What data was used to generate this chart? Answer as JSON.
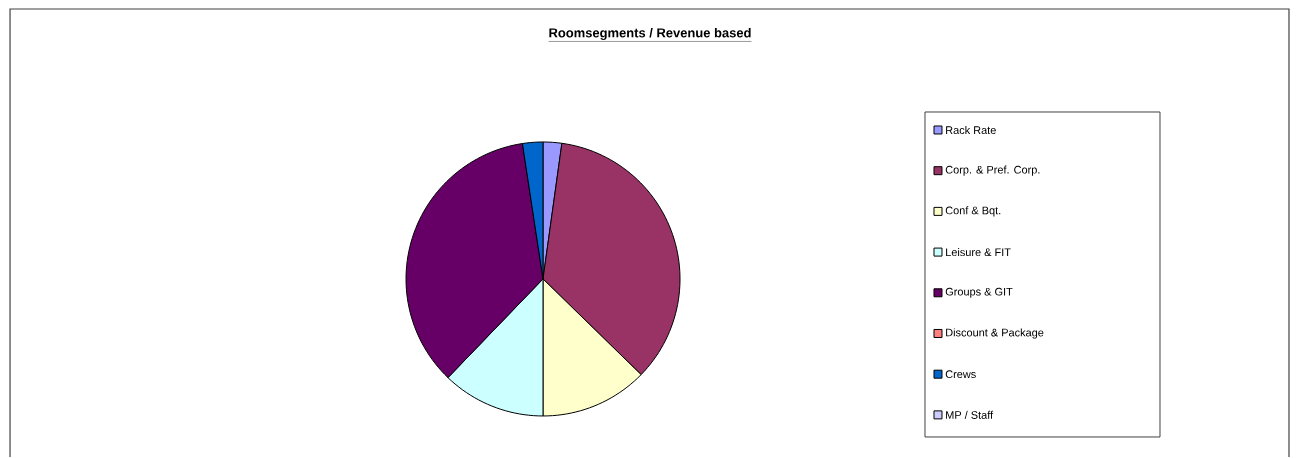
{
  "chart_data": {
    "type": "pie",
    "title": "Roomsegments / Revenue based",
    "categories": [
      "Rack Rate",
      "Corp. &  Pref. Corp.",
      "Conf & Bqt.",
      "Leisure & FIT",
      "Groups & GIT",
      "Discount & Package",
      "Crews",
      "MP / Staff"
    ],
    "values": [
      2.2,
      35.1,
      12.7,
      12.2,
      35.4,
      0,
      2.4,
      0
    ],
    "colors": [
      "#9999ff",
      "#993366",
      "#ffffcc",
      "#ccffff",
      "#660066",
      "#ff8080",
      "#0066cc",
      "#ccccff"
    ],
    "legend": "right"
  }
}
